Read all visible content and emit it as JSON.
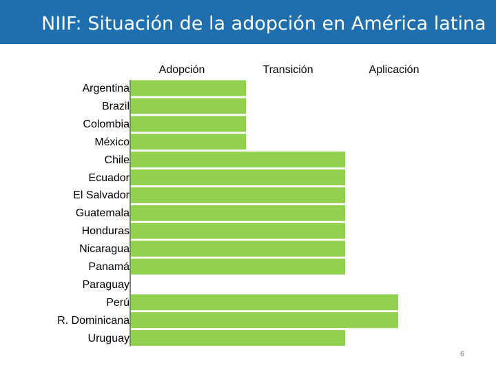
{
  "slide": {
    "title": "NIIF: Situación de la adopción en América latina",
    "page_number": "6"
  },
  "colors": {
    "title_bar": "#1f6fae",
    "bar": "#92d050",
    "axis": "#000000"
  },
  "chart_data": {
    "type": "bar",
    "orientation": "horizontal",
    "stage_headers": [
      "Adopción",
      "Transición",
      "Aplicación"
    ],
    "categories": [
      "Argentina",
      "Brazil",
      "Colombia",
      "México",
      "Chile",
      "Ecuador",
      "El Salvador",
      "Guatemala",
      "Honduras",
      "Nicaragua",
      "Panamá",
      "Paraguay",
      "Perú",
      "R. Dominicana",
      "Uruguay"
    ],
    "values": [
      1,
      1,
      1,
      1,
      2,
      2,
      2,
      2,
      2,
      2,
      2,
      0,
      2.5,
      2.5,
      2
    ],
    "xlim": [
      0,
      3
    ],
    "grid": false,
    "legend": "none"
  }
}
